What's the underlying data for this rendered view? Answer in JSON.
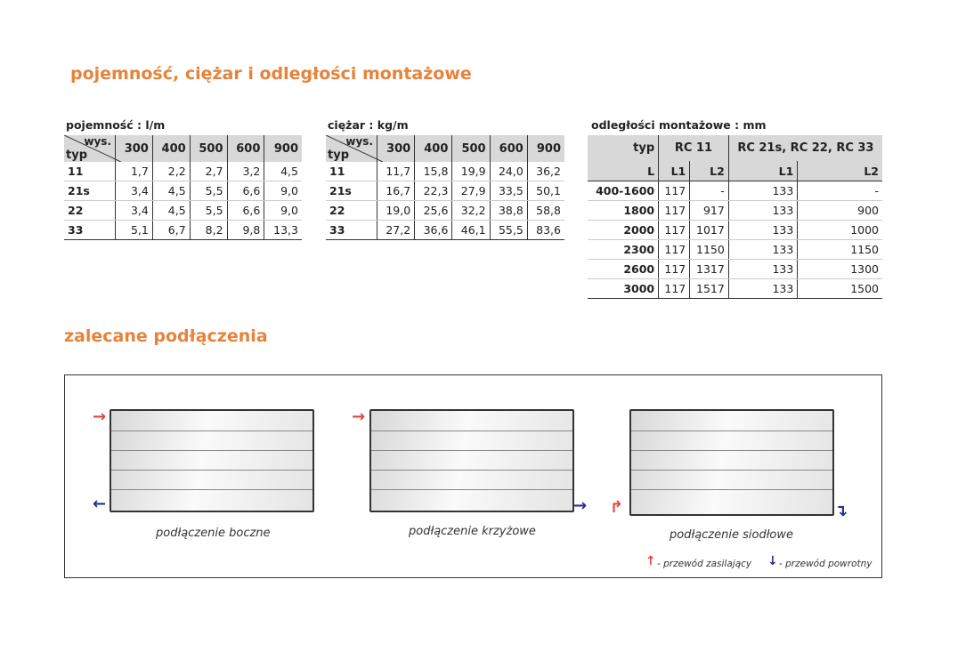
{
  "title": "pojemność, ciężar i odległości montażowe",
  "capacity": {
    "caption": "pojemność : l/m",
    "corner_top": "wys.",
    "corner_left": "typ",
    "heights": [
      "300",
      "400",
      "500",
      "600",
      "900"
    ],
    "rows": [
      [
        "11",
        "1,7",
        "2,2",
        "2,7",
        "3,2",
        "4,5"
      ],
      [
        "21s",
        "3,4",
        "4,5",
        "5,5",
        "6,6",
        "9,0"
      ],
      [
        "22",
        "3,4",
        "4,5",
        "5,5",
        "6,6",
        "9,0"
      ],
      [
        "33",
        "5,1",
        "6,7",
        "8,2",
        "9,8",
        "13,3"
      ]
    ]
  },
  "weight": {
    "caption": "ciężar : kg/m",
    "corner_top": "wys.",
    "corner_left": "typ",
    "heights": [
      "300",
      "400",
      "500",
      "600",
      "900"
    ],
    "rows": [
      [
        "11",
        "11,7",
        "15,8",
        "19,9",
        "24,0",
        "36,2"
      ],
      [
        "21s",
        "16,7",
        "22,3",
        "27,9",
        "33,5",
        "50,1"
      ],
      [
        "22",
        "19,0",
        "25,6",
        "32,2",
        "38,8",
        "58,8"
      ],
      [
        "33",
        "27,2",
        "36,6",
        "46,1",
        "55,5",
        "83,6"
      ]
    ]
  },
  "distances": {
    "caption": "odległości montażowe : mm",
    "header": [
      "typ",
      "RC 11",
      "RC 21s, RC 22, RC 33"
    ],
    "subheader": [
      "L",
      "L1",
      "L2",
      "L1",
      "L2"
    ],
    "rows": [
      [
        "400-1600",
        "117",
        "-",
        "133",
        "-"
      ],
      [
        "1800",
        "117",
        "917",
        "133",
        "900"
      ],
      [
        "2000",
        "117",
        "1017",
        "133",
        "1000"
      ],
      [
        "2300",
        "117",
        "1150",
        "133",
        "1150"
      ],
      [
        "2600",
        "117",
        "1317",
        "133",
        "1300"
      ],
      [
        "3000",
        "117",
        "1517",
        "133",
        "1500"
      ]
    ]
  },
  "connections": {
    "title": "zalecane podłączenia",
    "items": [
      "podłączenie boczne",
      "podłączenie krzyżowe",
      "podłączenie siodłowe"
    ],
    "legend_supply": "- przewód zasilający",
    "legend_return": "- przewód powrotny"
  },
  "colors": {
    "accent": "#e8823a",
    "supply": "#e0473a",
    "return": "#2a2f8c"
  }
}
